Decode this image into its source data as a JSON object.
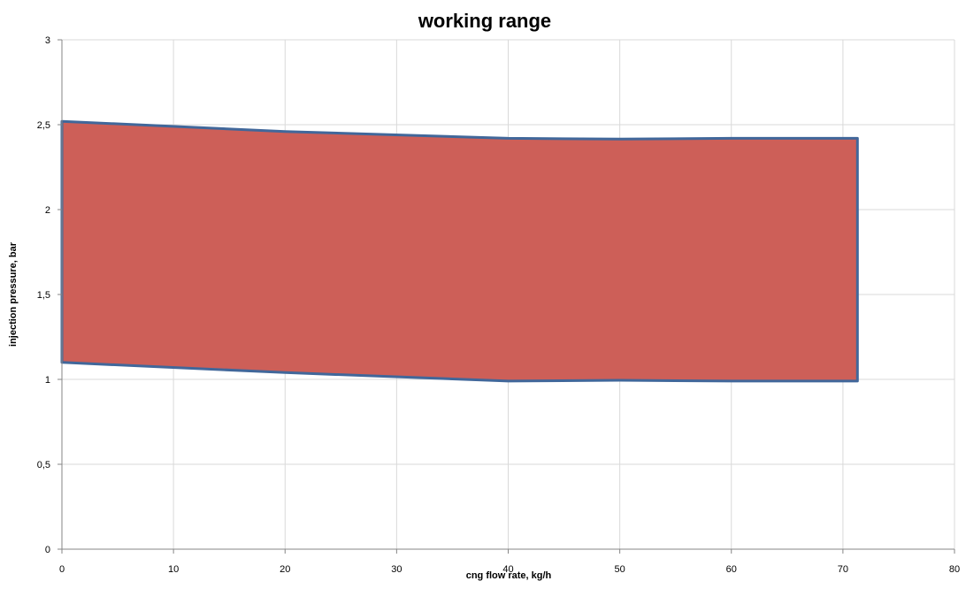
{
  "chart_data": {
    "type": "area",
    "title": "working range",
    "xlabel": "cng flow rate, kg/h",
    "ylabel": "injection pressure,  bar",
    "xlim": [
      0,
      80
    ],
    "ylim": [
      0,
      3
    ],
    "x_ticks": [
      0,
      10,
      20,
      30,
      40,
      50,
      60,
      70,
      80
    ],
    "y_ticks": [
      0,
      0.5,
      1,
      1.5,
      2,
      2.5,
      3
    ],
    "x_tick_labels": [
      "0",
      "10",
      "20",
      "30",
      "40",
      "50",
      "60",
      "70",
      "80"
    ],
    "y_tick_labels": [
      "0",
      "0,5",
      "1",
      "1,5",
      "2",
      "2,5",
      "3"
    ],
    "grid": true,
    "legend": "none",
    "polygon": {
      "upper": {
        "x": [
          0,
          20,
          40,
          50,
          60,
          71.3
        ],
        "y": [
          2.52,
          2.46,
          2.42,
          2.415,
          2.42,
          2.42
        ]
      },
      "lower": {
        "x": [
          0,
          20,
          40,
          50,
          60,
          71.3
        ],
        "y": [
          1.1,
          1.04,
          0.99,
          0.995,
          0.99,
          0.99
        ]
      }
    },
    "fill_color": "#cd5f58",
    "edge_color": "#41679a"
  }
}
